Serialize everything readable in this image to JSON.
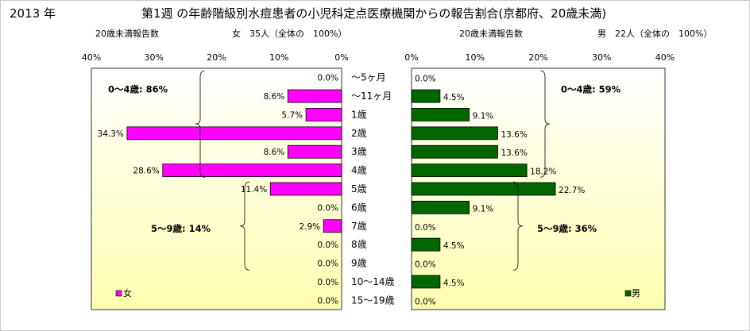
{
  "title": {
    "year": "2013 年",
    "main": "第1週 の年齢階級別水痘患者の小児科定点医療機関からの報告割合(京都府、20歳未満)"
  },
  "chart_data": {
    "type": "bar",
    "categories": [
      "～5ヶ月",
      "～11ヶ月",
      "1歳",
      "2歳",
      "3歳",
      "4歳",
      "5歳",
      "6歳",
      "7歳",
      "8歳",
      "9歳",
      "10～14歳",
      "15～19歳"
    ],
    "axis_ticks": [
      "0%",
      "10%",
      "20%",
      "30%",
      "40%"
    ],
    "xlim": [
      0,
      40
    ],
    "colors": {
      "female": "#ff00ff",
      "male": "#006600",
      "plot_bg_top": "#ffffff",
      "plot_bg_bottom": "#ffffb0"
    },
    "series": [
      {
        "name": "女",
        "header_left": "20歳未満報告数",
        "header_right": "女　35人（全体の　100%）",
        "values": [
          0.0,
          8.6,
          5.7,
          34.3,
          8.6,
          28.6,
          11.4,
          0.0,
          2.9,
          0.0,
          0.0,
          0.0,
          0.0
        ],
        "labels": [
          "0.0%",
          "8.6%",
          "5.7%",
          "34.3%",
          "8.6%",
          "28.6%",
          "11.4%",
          "0.0%",
          "2.9%",
          "0.0%",
          "0.0%",
          "0.0%",
          "0.0%"
        ],
        "group_labels": [
          "0～4歳: 86%",
          "5～9歳: 14%"
        ]
      },
      {
        "name": "男",
        "header_left": "20歳未満報告数",
        "header_right": "男　22人（全体の　100%）",
        "values": [
          0.0,
          4.5,
          9.1,
          13.6,
          13.6,
          18.2,
          22.7,
          9.1,
          0.0,
          4.5,
          0.0,
          4.5,
          0.0
        ],
        "labels": [
          "0.0%",
          "4.5%",
          "9.1%",
          "13.6%",
          "13.6%",
          "18.2%",
          "22.7%",
          "9.1%",
          "0.0%",
          "4.5%",
          "0.0%",
          "4.5%",
          "0.0%"
        ],
        "group_labels": [
          "0～4歳: 59%",
          "5～9歳: 36%"
        ]
      }
    ],
    "legend": [
      "女",
      "男"
    ]
  }
}
